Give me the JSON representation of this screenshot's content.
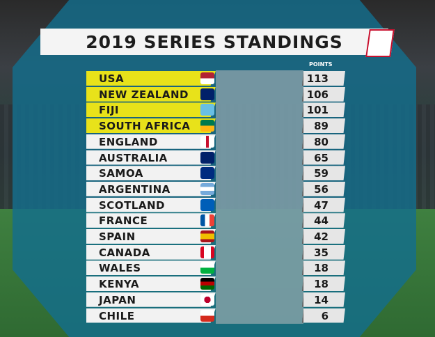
{
  "header": {
    "title": "2019 SERIES STANDINGS",
    "points_label": "POINTS"
  },
  "table": {
    "rows": [
      [
        "USA",
        113
      ],
      [
        "NEW ZEALAND",
        106
      ],
      [
        "FIJI",
        101
      ],
      [
        "SOUTH AFRICA",
        89
      ],
      [
        "ENGLAND",
        80
      ],
      [
        "AUSTRALIA",
        65
      ],
      [
        "SAMOA",
        59
      ],
      [
        "ARGENTINA",
        56
      ],
      [
        "SCOTLAND",
        47
      ],
      [
        "FRANCE",
        44
      ],
      [
        "SPAIN",
        42
      ],
      [
        "CANADA",
        35
      ],
      [
        "WALES",
        18
      ],
      [
        "KENYA",
        18
      ],
      [
        "JAPAN",
        14
      ],
      [
        "CHILE",
        6
      ]
    ]
  }
}
